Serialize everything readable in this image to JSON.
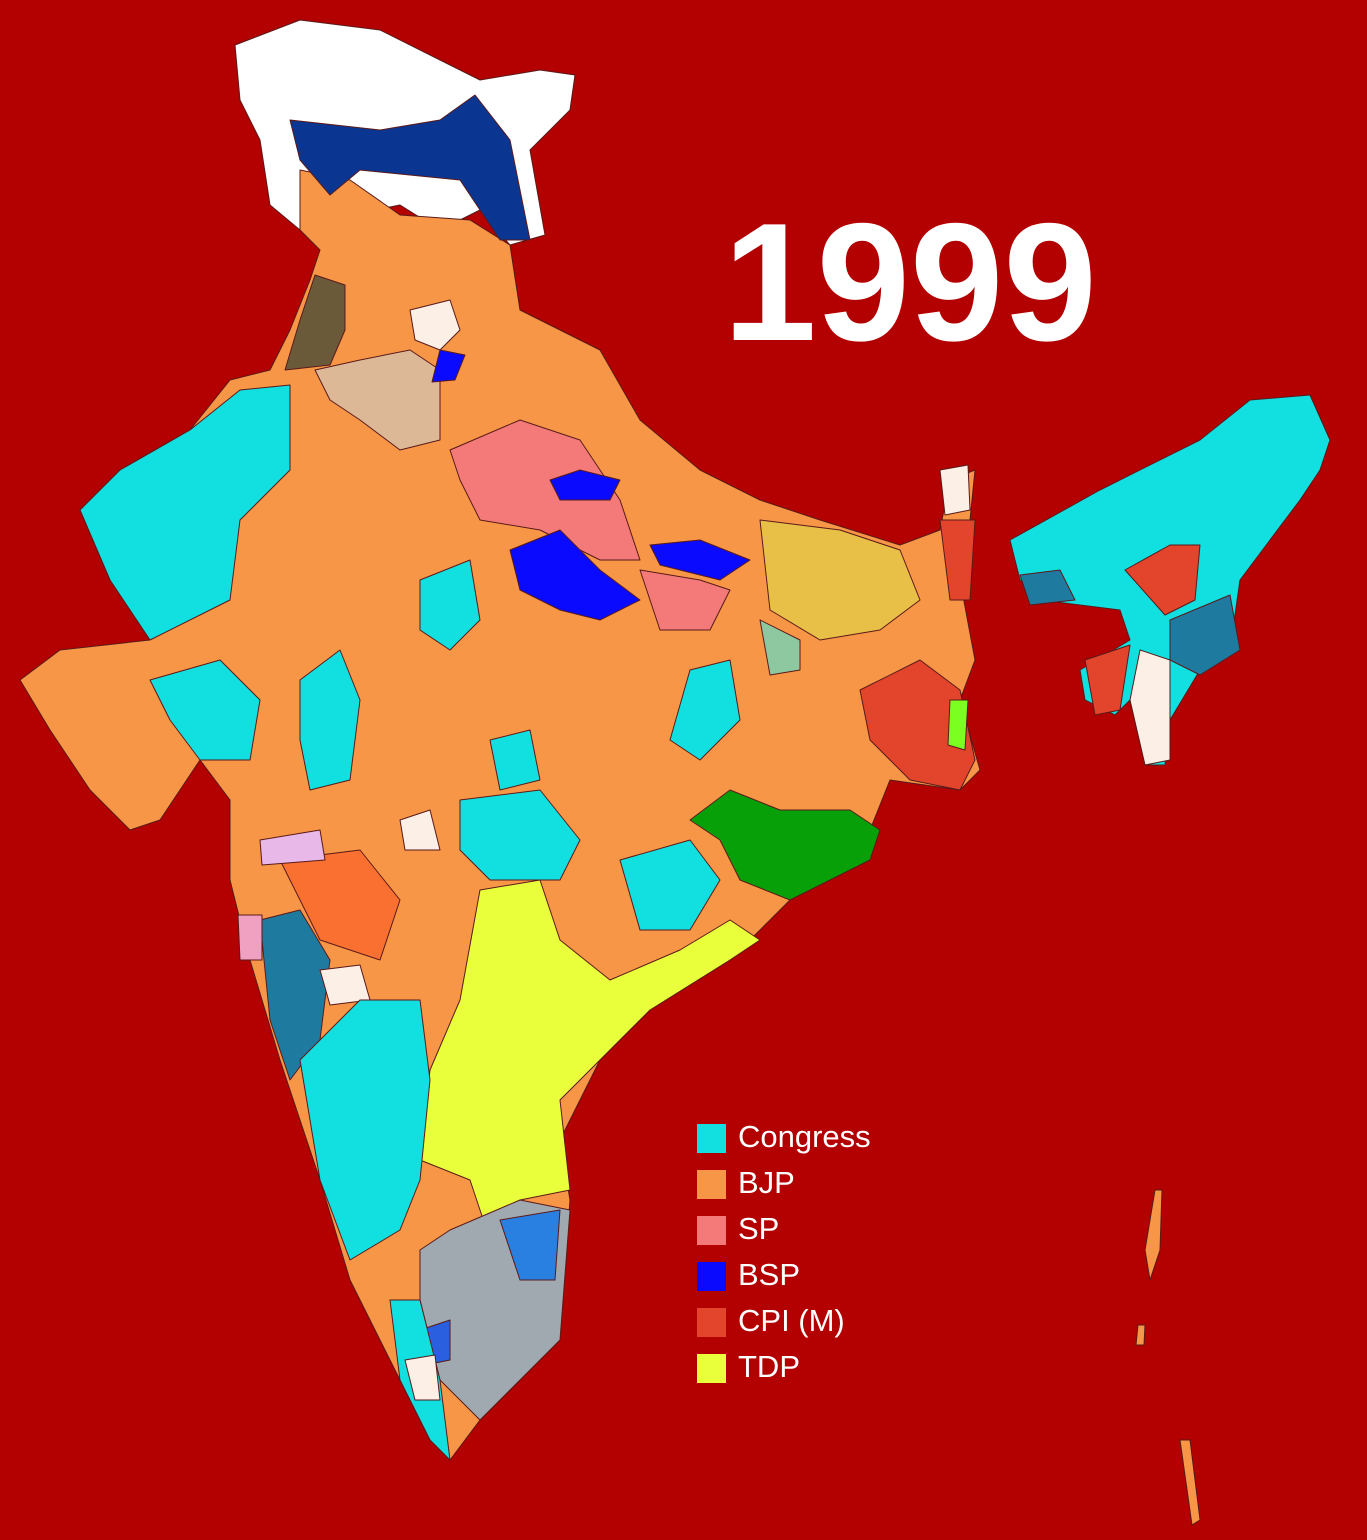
{
  "title": "1999",
  "legend": [
    {
      "label": "Congress",
      "color": "#12dfe0"
    },
    {
      "label": "BJP",
      "color": "#f79646"
    },
    {
      "label": "SP",
      "color": "#f47a7a"
    },
    {
      "label": "BSP",
      "color": "#0a0aff"
    },
    {
      "label": "CPI (M)",
      "color": "#e2452c"
    },
    {
      "label": "TDP",
      "color": "#eaff3c"
    }
  ]
}
